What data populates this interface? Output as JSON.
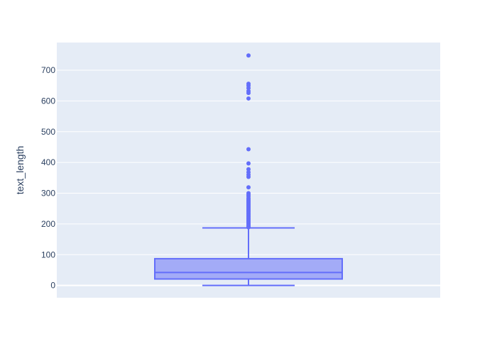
{
  "chart_data": {
    "type": "box",
    "title": "",
    "xlabel": "",
    "ylabel": "text_length",
    "ylim": [
      -40,
      790
    ],
    "yticks": [
      0,
      100,
      200,
      300,
      400,
      500,
      600,
      700
    ],
    "tick_labels": [
      "0",
      "100",
      "200",
      "300",
      "400",
      "500",
      "600",
      "700"
    ],
    "grid": true,
    "legend": "none",
    "colors": {
      "plot_bg": "#e5ecf6",
      "box_fill": "#a3abf7",
      "box_line": "#636efa",
      "grid": "#ffffff",
      "text": "#2a3f5f"
    },
    "series": [
      {
        "stats": {
          "min": 0,
          "q1": 21,
          "median": 42,
          "q3": 87,
          "whisker_high": 187
        },
        "outliers": [
          748,
          656,
          650,
          642,
          632,
          626,
          608,
          443,
          397,
          378,
          368,
          360,
          353,
          319,
          300,
          295,
          290,
          284,
          280,
          276,
          272,
          268,
          264,
          260,
          256,
          252,
          248,
          244,
          240,
          236,
          232,
          228,
          224,
          220,
          216,
          212,
          208,
          204,
          200,
          196,
          192,
          189
        ]
      }
    ]
  }
}
